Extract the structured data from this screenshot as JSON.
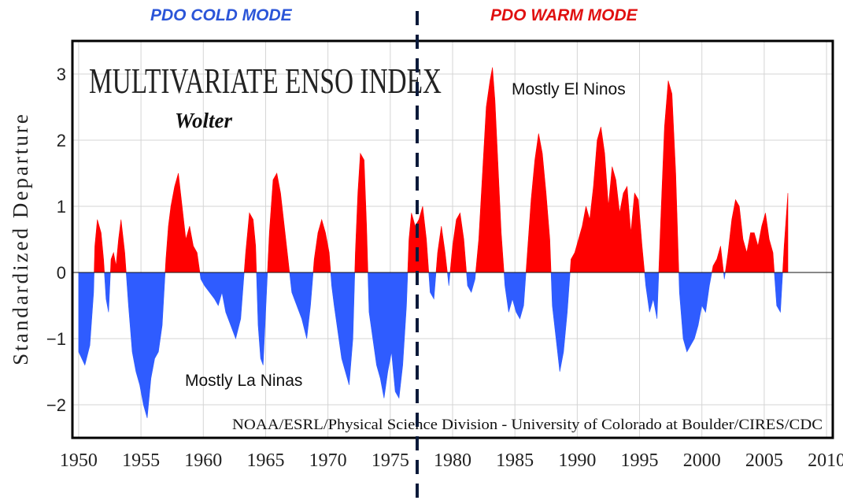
{
  "header": {
    "left_mode": "PDO COLD MODE",
    "right_mode": "PDO WARM MODE",
    "left_color": "#2b55d8",
    "right_color": "#e01010"
  },
  "chart_data": {
    "type": "area",
    "title": "MULTIVARIATE ENSO INDEX",
    "subtitle": "Wolter",
    "ylabel": "Standardized Departure",
    "xlabel": "",
    "credit": "NOAA/ESRL/Physical Science Division - University of Colorado at Boulder/CIRES/CDC",
    "xlim": [
      1949.5,
      2010.5
    ],
    "ylim": [
      -2.5,
      3.5
    ],
    "xticks": [
      "1950",
      "1955",
      "1960",
      "1965",
      "1970",
      "1975",
      "1980",
      "1985",
      "1990",
      "1995",
      "2000",
      "2005",
      "2010"
    ],
    "yticks": [
      "3",
      "2",
      "1",
      "0",
      "−1",
      "−2"
    ],
    "grid": true,
    "positive_color": "#ff0000",
    "negative_color": "#2f5cff",
    "divider_year": 1977,
    "annotations": [
      "Mostly La Ninas",
      "Mostly El Ninos"
    ],
    "x": [
      1950.0,
      1950.5,
      1950.9,
      1951.2,
      1951.3,
      1951.5,
      1951.8,
      1952.0,
      1952.2,
      1952.4,
      1952.6,
      1952.8,
      1953.0,
      1953.2,
      1953.4,
      1953.7,
      1954.0,
      1954.3,
      1954.6,
      1954.9,
      1955.2,
      1955.5,
      1955.8,
      1956.1,
      1956.4,
      1956.7,
      1957.0,
      1957.2,
      1957.4,
      1957.7,
      1958.0,
      1958.3,
      1958.6,
      1958.9,
      1959.2,
      1959.5,
      1959.8,
      1960.1,
      1960.5,
      1960.9,
      1961.2,
      1961.5,
      1961.8,
      1962.2,
      1962.6,
      1963.0,
      1963.4,
      1963.7,
      1964.0,
      1964.2,
      1964.4,
      1964.6,
      1964.8,
      1965.0,
      1965.3,
      1965.6,
      1965.9,
      1966.2,
      1966.5,
      1966.8,
      1967.1,
      1967.5,
      1967.9,
      1968.3,
      1968.6,
      1968.9,
      1969.2,
      1969.5,
      1969.8,
      1970.1,
      1970.3,
      1970.5,
      1970.8,
      1971.1,
      1971.4,
      1971.7,
      1972.0,
      1972.2,
      1972.4,
      1972.6,
      1972.9,
      1973.1,
      1973.3,
      1973.6,
      1973.9,
      1974.2,
      1974.5,
      1974.8,
      1975.1,
      1975.4,
      1975.7,
      1976.0,
      1976.3,
      1976.5,
      1976.7,
      1977.0,
      1977.3,
      1977.6,
      1977.9,
      1978.2,
      1978.5,
      1978.8,
      1979.1,
      1979.4,
      1979.7,
      1980.0,
      1980.3,
      1980.6,
      1980.9,
      1981.2,
      1981.5,
      1981.8,
      1982.1,
      1982.4,
      1982.7,
      1983.0,
      1983.2,
      1983.4,
      1983.6,
      1983.9,
      1984.2,
      1984.5,
      1984.8,
      1985.1,
      1985.4,
      1985.7,
      1986.0,
      1986.3,
      1986.6,
      1986.9,
      1987.2,
      1987.5,
      1987.8,
      1988.0,
      1988.3,
      1988.6,
      1988.9,
      1989.2,
      1989.5,
      1989.8,
      1990.1,
      1990.4,
      1990.7,
      1991.0,
      1991.3,
      1991.6,
      1991.9,
      1992.2,
      1992.5,
      1992.8,
      1993.1,
      1993.4,
      1993.7,
      1994.0,
      1994.3,
      1994.6,
      1994.9,
      1995.2,
      1995.5,
      1995.8,
      1996.1,
      1996.4,
      1996.7,
      1997.0,
      1997.3,
      1997.6,
      1997.9,
      1998.2,
      1998.5,
      1998.8,
      1999.1,
      1999.4,
      1999.7,
      2000.0,
      2000.3,
      2000.6,
      2000.9,
      2001.2,
      2001.5,
      2001.8,
      2002.1,
      2002.4,
      2002.7,
      2003.0,
      2003.3,
      2003.6,
      2003.9,
      2004.2,
      2004.5,
      2004.8,
      2005.1,
      2005.4,
      2005.7,
      2006.0,
      2006.3,
      2006.6,
      2006.9
    ],
    "values": [
      -1.2,
      -1.4,
      -1.1,
      -0.3,
      0.4,
      0.8,
      0.6,
      0.2,
      -0.4,
      -0.6,
      0.2,
      0.3,
      0.1,
      0.5,
      0.8,
      0.3,
      -0.5,
      -1.2,
      -1.5,
      -1.7,
      -2.0,
      -2.2,
      -1.6,
      -1.3,
      -1.2,
      -0.8,
      0.2,
      0.7,
      1.0,
      1.3,
      1.5,
      1.0,
      0.5,
      0.7,
      0.4,
      0.3,
      -0.1,
      -0.2,
      -0.3,
      -0.4,
      -0.5,
      -0.3,
      -0.6,
      -0.8,
      -1.0,
      -0.7,
      0.3,
      0.9,
      0.8,
      0.4,
      -0.8,
      -1.3,
      -1.4,
      -0.6,
      0.6,
      1.4,
      1.5,
      1.2,
      0.7,
      0.2,
      -0.3,
      -0.5,
      -0.7,
      -1.0,
      -0.5,
      0.2,
      0.6,
      0.8,
      0.6,
      0.3,
      -0.2,
      -0.5,
      -0.9,
      -1.3,
      -1.5,
      -1.7,
      -1.0,
      0.3,
      1.2,
      1.8,
      1.7,
      0.7,
      -0.6,
      -1.0,
      -1.4,
      -1.6,
      -1.9,
      -1.5,
      -1.2,
      -1.8,
      -1.9,
      -1.4,
      -0.5,
      0.5,
      0.9,
      0.7,
      0.8,
      1.0,
      0.5,
      -0.3,
      -0.4,
      0.3,
      0.7,
      0.3,
      -0.2,
      0.4,
      0.8,
      0.9,
      0.5,
      -0.2,
      -0.3,
      -0.1,
      0.5,
      1.5,
      2.5,
      2.9,
      3.1,
      2.6,
      1.8,
      0.6,
      -0.2,
      -0.6,
      -0.4,
      -0.6,
      -0.7,
      -0.5,
      0.3,
      1.1,
      1.7,
      2.1,
      1.8,
      1.2,
      0.5,
      -0.5,
      -1.0,
      -1.5,
      -1.2,
      -0.6,
      0.2,
      0.3,
      0.5,
      0.7,
      1.0,
      0.8,
      1.3,
      2.0,
      2.2,
      1.8,
      1.0,
      1.6,
      1.4,
      0.9,
      1.2,
      1.3,
      0.6,
      1.2,
      1.1,
      0.4,
      -0.2,
      -0.6,
      -0.4,
      -0.7,
      0.8,
      2.2,
      2.9,
      2.7,
      1.5,
      -0.3,
      -1.0,
      -1.2,
      -1.1,
      -1.0,
      -0.8,
      -0.5,
      -0.6,
      -0.2,
      0.1,
      0.2,
      0.4,
      -0.1,
      0.3,
      0.8,
      1.1,
      1.0,
      0.5,
      0.3,
      0.6,
      0.6,
      0.4,
      0.7,
      0.9,
      0.5,
      0.3,
      -0.5,
      -0.6,
      0.4,
      1.2
    ]
  }
}
